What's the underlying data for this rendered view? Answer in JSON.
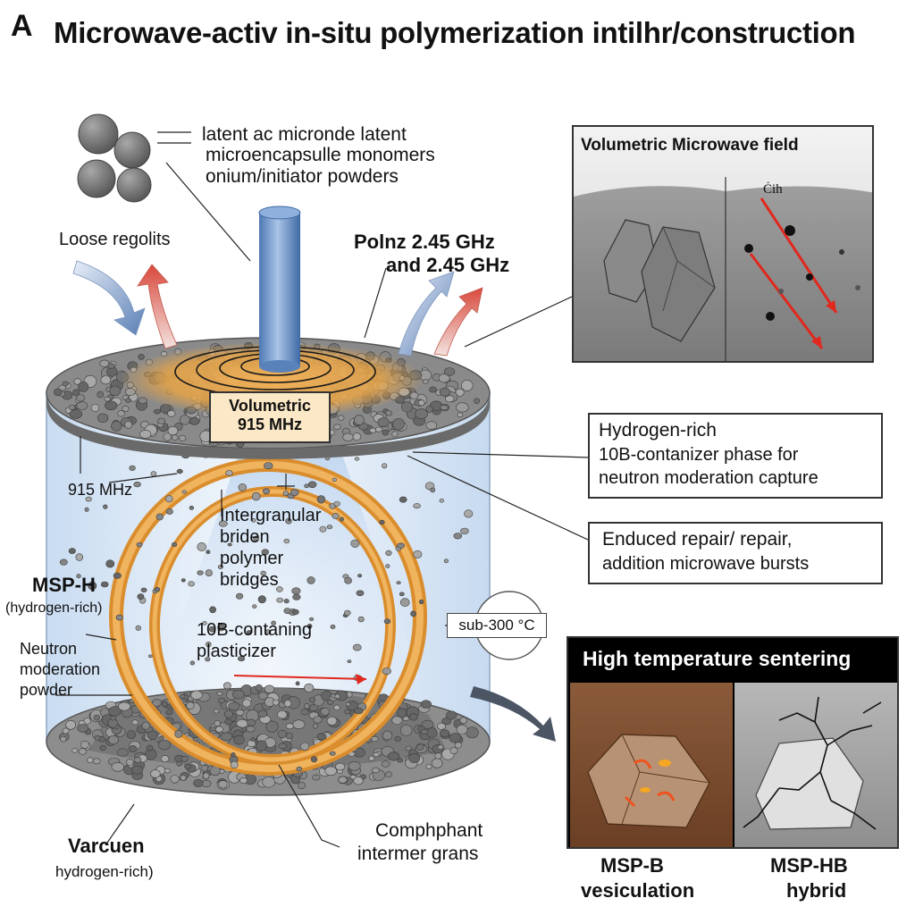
{
  "panel_letter": "A",
  "title": "Microwave-activ in-situ polymerization intilhr/construction",
  "labels": {
    "capsule_line1": "latent ac micronde latent",
    "capsule_line2": "microencapsulle monomers",
    "capsule_line3": "onium/initiator powders",
    "loose_regolith": "Loose regolits",
    "freq_line1": "Polnz 2.45 GHz",
    "freq_line2": "and 2.45 GHz",
    "volumetric_line1": "Volumetric",
    "volumetric_line2": "915 MHz",
    "freq_915": "915 MHz",
    "bridges_line1": "Intergranular",
    "bridges_line2": "briden",
    "bridges_line3": "polymer",
    "bridges_line4": "bridges",
    "msph_title": "MSP-H",
    "msph_sub": "(hydrogen-rich)",
    "neutron_line1": "Neutron",
    "neutron_line2": "moderation",
    "neutron_line3": "powder",
    "plasticizer_line1": "10B-contaning",
    "plasticizer_line2": "plasticizer",
    "sub300": "sub-300 °C",
    "varcuen": "Varcuen",
    "varcuen_sub": "hydrogen-rich)",
    "compliant_line1": "Comphphant",
    "compliant_line2": "intermer grans"
  },
  "insets": {
    "microwave_field": {
      "title": "Volumetric Microwave field",
      "mark": "Ċih"
    },
    "hydrogen_box": {
      "line1": "Hydrogen-rich",
      "line2": "10B-contanizer phase for",
      "line3": "neutron moderation capture"
    },
    "repair_box": {
      "line1": "Enduced repair/ repair,",
      "line2": "addition microwave bursts"
    },
    "sintering": {
      "title": "High temperature sentering"
    }
  },
  "bottom_labels": {
    "msp_b_line1": "MSP-B",
    "msp_b_line2": "vesiculation",
    "msp_hb_line1": "MSP-HB",
    "msp_hb_line2": "hybrid"
  },
  "colors": {
    "rock": "#6e6e6e",
    "polymer_orange": "#e39a3c",
    "heat_red": "#d9483b",
    "cool_blue": "#6f8fbf",
    "cylinder_blue": "#dde9f6",
    "pointer_red": "#e0281e"
  }
}
